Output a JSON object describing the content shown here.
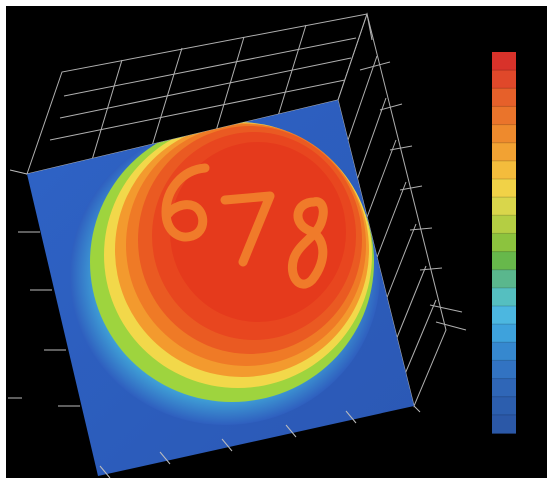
{
  "plot": {
    "surface_colors": {
      "base": "#2f5fbf",
      "cyan": "#3fc6e6",
      "green": "#7cc83a",
      "yellow": "#f1e14a",
      "orange": "#f28a25",
      "red": "#e8391f",
      "dark_red": "#c9261b"
    },
    "embossed_digits": [
      "6",
      "7",
      "8"
    ],
    "frame_color": "#d8d8d8",
    "background_color": "#000000"
  },
  "colorbar": {
    "colors": [
      "#d8322a",
      "#e0482a",
      "#e6602a",
      "#ea742b",
      "#ee8a2d",
      "#f2a233",
      "#f4bc3c",
      "#f1d247",
      "#d9d64b",
      "#b4ce43",
      "#8cc33e",
      "#67b84b",
      "#5ab78d",
      "#55bfc0",
      "#4cb7e0",
      "#3ea2dc",
      "#3688cf",
      "#3273c2",
      "#2f66b7",
      "#2c5eae",
      "#2b58a7"
    ]
  }
}
